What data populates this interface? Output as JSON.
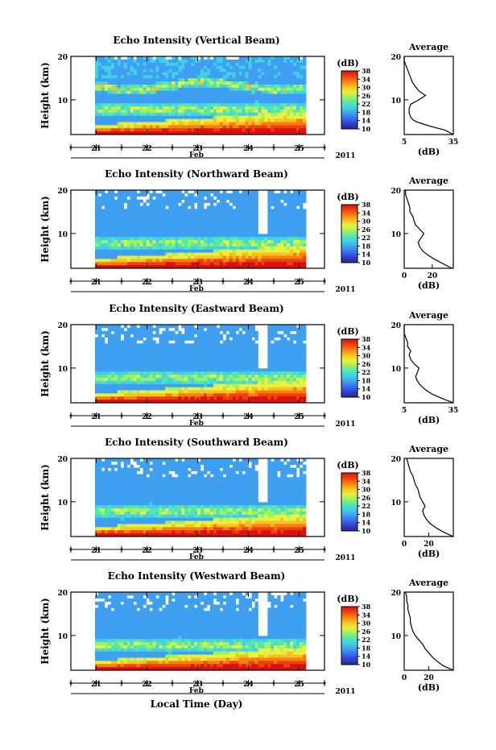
{
  "figure": {
    "xlabel": "Local Time (Day)",
    "month_label": "Feb",
    "year_label": "2011"
  },
  "colorbar": {
    "unit": "(dB)",
    "ticks": [
      10,
      14,
      18,
      22,
      26,
      30,
      34,
      38
    ],
    "colors": [
      "#2a2a8c",
      "#2f3fcf",
      "#3a6ef0",
      "#3f9ff0",
      "#40d0e8",
      "#50e8b0",
      "#a0f060",
      "#e8f040",
      "#f8c020",
      "#f88010",
      "#f04010",
      "#d81010"
    ]
  },
  "chart_data": [
    {
      "type": "heatmap",
      "title": "Echo Intensity (Vertical Beam)",
      "ylabel": "Height (km)",
      "x_ticks": [
        "21",
        "22",
        "23",
        "24",
        "25"
      ],
      "y_ticks": [
        10,
        20
      ],
      "xlim": [
        20.5,
        25.5
      ],
      "ylim": [
        2,
        20
      ],
      "zlim": [
        10,
        38
      ],
      "profile": {
        "title": "Average",
        "xlabel": "(dB)",
        "x_ticks": [
          "5",
          "35"
        ],
        "xlim": [
          5,
          35
        ],
        "y_ticks": [
          10,
          20
        ],
        "ylim": [
          2,
          20
        ],
        "points": [
          [
            35,
            2
          ],
          [
            30,
            3
          ],
          [
            25,
            3.5
          ],
          [
            20,
            4
          ],
          [
            16,
            4.5
          ],
          [
            12,
            5
          ],
          [
            10,
            5.5
          ],
          [
            9,
            6
          ],
          [
            8,
            7
          ],
          [
            8,
            8
          ],
          [
            9,
            9
          ],
          [
            14,
            10
          ],
          [
            18,
            11
          ],
          [
            14,
            12
          ],
          [
            12,
            13
          ],
          [
            10,
            14
          ],
          [
            9,
            15
          ],
          [
            8,
            16
          ],
          [
            7,
            17
          ],
          [
            6,
            18
          ],
          [
            5,
            19
          ],
          [
            5,
            20
          ]
        ]
      }
    },
    {
      "type": "heatmap",
      "title": "Echo Intensity (Northward Beam)",
      "ylabel": "Height (km)",
      "x_ticks": [
        "21",
        "22",
        "23",
        "24",
        "25"
      ],
      "y_ticks": [
        10,
        20
      ],
      "xlim": [
        20.5,
        25.5
      ],
      "ylim": [
        2,
        20
      ],
      "zlim": [
        10,
        38
      ],
      "profile": {
        "title": "Average",
        "xlabel": "(dB)",
        "x_ticks": [
          "0",
          "20"
        ],
        "xlim": [
          0,
          35
        ],
        "y_ticks": [
          10,
          20
        ],
        "ylim": [
          2,
          20
        ],
        "points": [
          [
            34,
            2
          ],
          [
            28,
            3
          ],
          [
            22,
            4
          ],
          [
            17,
            5
          ],
          [
            13,
            6
          ],
          [
            11,
            7
          ],
          [
            10,
            8
          ],
          [
            12,
            9
          ],
          [
            14,
            10
          ],
          [
            11,
            11
          ],
          [
            8,
            12
          ],
          [
            7,
            13
          ],
          [
            6,
            14
          ],
          [
            4,
            15
          ],
          [
            4,
            16
          ],
          [
            3,
            17
          ],
          [
            2,
            18
          ],
          [
            1,
            19
          ],
          [
            1,
            20
          ]
        ]
      }
    },
    {
      "type": "heatmap",
      "title": "Echo Intensity (Eastward Beam)",
      "ylabel": "Height (km)",
      "x_ticks": [
        "21",
        "22",
        "23",
        "24",
        "25"
      ],
      "y_ticks": [
        10,
        20
      ],
      "xlim": [
        20.5,
        25.5
      ],
      "ylim": [
        2,
        20
      ],
      "zlim": [
        10,
        38
      ],
      "profile": {
        "title": "Average",
        "xlabel": "(dB)",
        "x_ticks": [
          "5",
          "35"
        ],
        "xlim": [
          5,
          35
        ],
        "y_ticks": [
          10,
          20
        ],
        "ylim": [
          2,
          20
        ],
        "points": [
          [
            35,
            2
          ],
          [
            28,
            3
          ],
          [
            22,
            4
          ],
          [
            18,
            5
          ],
          [
            15,
            6
          ],
          [
            13,
            7
          ],
          [
            12,
            8
          ],
          [
            13,
            9
          ],
          [
            14,
            10
          ],
          [
            11,
            11
          ],
          [
            9,
            12
          ],
          [
            8,
            13
          ],
          [
            9,
            14
          ],
          [
            7,
            15
          ],
          [
            7,
            16
          ],
          [
            6,
            17
          ],
          [
            5,
            18
          ],
          [
            5,
            19
          ],
          [
            5,
            20
          ]
        ]
      }
    },
    {
      "type": "heatmap",
      "title": "Echo Intensity (Southward Beam)",
      "ylabel": "Height (km)",
      "x_ticks": [
        "21",
        "22",
        "23",
        "24",
        "25"
      ],
      "y_ticks": [
        10,
        20
      ],
      "xlim": [
        20.5,
        25.5
      ],
      "ylim": [
        2,
        20
      ],
      "zlim": [
        10,
        38
      ],
      "profile": {
        "title": "Average",
        "xlabel": "(dB)",
        "x_ticks": [
          "0",
          "20"
        ],
        "xlim": [
          0,
          40
        ],
        "y_ticks": [
          10,
          20
        ],
        "ylim": [
          2,
          20
        ],
        "points": [
          [
            40,
            2
          ],
          [
            32,
            3
          ],
          [
            26,
            4
          ],
          [
            21,
            5
          ],
          [
            18,
            6
          ],
          [
            16,
            7
          ],
          [
            15,
            8
          ],
          [
            17,
            9
          ],
          [
            15,
            10
          ],
          [
            13,
            11
          ],
          [
            12,
            12
          ],
          [
            11,
            13
          ],
          [
            9,
            14
          ],
          [
            8,
            15
          ],
          [
            7,
            16
          ],
          [
            5,
            17
          ],
          [
            4,
            18
          ],
          [
            3,
            19
          ],
          [
            2,
            20
          ]
        ]
      }
    },
    {
      "type": "heatmap",
      "title": "Echo Intensity (Westward Beam)",
      "ylabel": "Height (km)",
      "x_ticks": [
        "21",
        "22",
        "23",
        "24",
        "25"
      ],
      "y_ticks": [
        10,
        20
      ],
      "xlim": [
        20.5,
        25.5
      ],
      "ylim": [
        2,
        20
      ],
      "zlim": [
        10,
        38
      ],
      "profile": {
        "title": "Average",
        "xlabel": "(dB)",
        "x_ticks": [
          "0",
          "20"
        ],
        "xlim": [
          0,
          40
        ],
        "y_ticks": [
          10,
          20
        ],
        "ylim": [
          2,
          20
        ],
        "points": [
          [
            40,
            2
          ],
          [
            32,
            3
          ],
          [
            27,
            4
          ],
          [
            23,
            5
          ],
          [
            20,
            6
          ],
          [
            17,
            7
          ],
          [
            15,
            8
          ],
          [
            12,
            9
          ],
          [
            9,
            10
          ],
          [
            7,
            11
          ],
          [
            6,
            12
          ],
          [
            5,
            13
          ],
          [
            5,
            14
          ],
          [
            4,
            15
          ],
          [
            3,
            16
          ],
          [
            3,
            17
          ],
          [
            2,
            18
          ],
          [
            2,
            19
          ],
          [
            1,
            20
          ]
        ]
      }
    }
  ]
}
